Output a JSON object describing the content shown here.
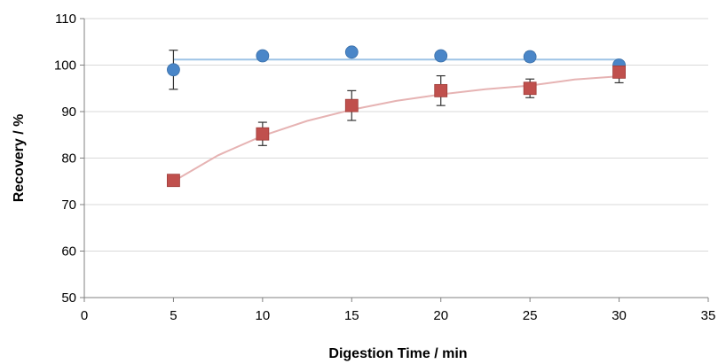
{
  "chart_data": {
    "type": "scatter",
    "title": "",
    "xlabel": "Digestion Time / min",
    "ylabel": "Recovery / %",
    "xlim": [
      0,
      35
    ],
    "ylim": [
      50,
      110
    ],
    "xticks": [
      0,
      5,
      10,
      15,
      20,
      25,
      30,
      35
    ],
    "yticks": [
      50,
      60,
      70,
      80,
      90,
      100,
      110
    ],
    "grid": "horizontal",
    "legend": "none",
    "series": [
      {
        "marker": "circle",
        "color": "#4a86c8",
        "line_color": "#9dc3e6",
        "x": [
          5,
          10,
          15,
          20,
          25,
          30
        ],
        "y": [
          99,
          102,
          102.8,
          102,
          101.8,
          100
        ],
        "error": [
          4.2,
          0.8,
          0.6,
          0.6,
          1.0,
          0.8
        ],
        "fit": {
          "x": [
            5,
            30
          ],
          "y": [
            101.2,
            101.2
          ]
        }
      },
      {
        "marker": "square",
        "color": "#c0504d",
        "line_color": "#e6b3b3",
        "x": [
          5,
          10,
          15,
          20,
          25,
          30
        ],
        "y": [
          75.2,
          85.2,
          91.3,
          94.5,
          95,
          98.5
        ],
        "error": [
          0.5,
          2.5,
          3.2,
          3.2,
          2.0,
          2.3
        ],
        "fit": {
          "x": [
            5,
            7.5,
            10,
            12.5,
            15,
            17.5,
            20,
            22.5,
            25,
            27.5,
            30
          ],
          "y": [
            75.0,
            80.6,
            84.8,
            88.0,
            90.4,
            92.3,
            93.7,
            94.8,
            95.6,
            96.9,
            97.6
          ]
        }
      }
    ]
  }
}
